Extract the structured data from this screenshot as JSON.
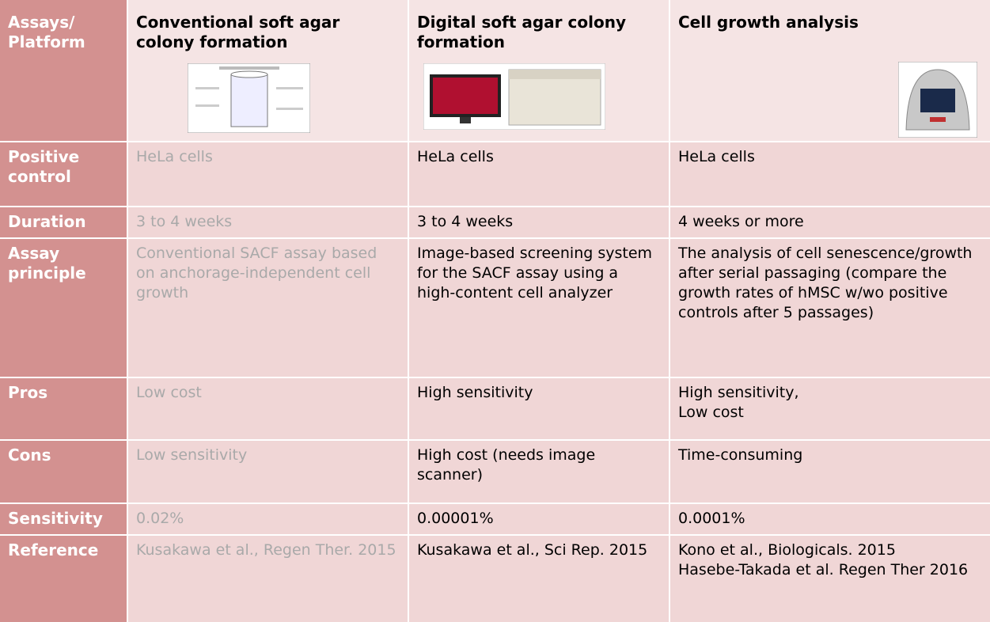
{
  "table": {
    "header": [
      "Assays/ Platform",
      "Conventional soft agar colony formation",
      "Digital soft agar colony formation",
      "Cell growth analysis"
    ],
    "rows": [
      [
        "Positive control",
        "HeLa cells",
        "HeLa cells",
        "HeLa cells"
      ],
      [
        "Duration",
        "3 to 4 weeks",
        "3 to 4 weeks",
        "4 weeks or more"
      ],
      [
        "Assay principle",
        "Conventional SACF assay based on anchorage-independent cell growth",
        "Image-based screening system for the SACF assay using a high-content cell analyzer",
        "The analysis of cell senescence/growth after serial passaging (compare the growth rates of hMSC w/wo positive controls after 5 passages)"
      ],
      [
        "Pros",
        "Low cost",
        "High sensitivity",
        "High sensitivity,\nLow cost"
      ],
      [
        "Cons",
        "Low sensitivity",
        "High cost (needs image scanner)",
        "Time-consuming"
      ],
      [
        "Sensitivity",
        "0.02%",
        "0.00001%",
        "0.0001%"
      ],
      [
        "Reference",
        "Kusakawa et al., Regen Ther. 2015",
        "Kusakawa et al., Sci Rep. 2015",
        "Kono et al., Biologicals. 2015\nHasebe-Takada et al. Regen Ther 2016"
      ]
    ]
  }
}
